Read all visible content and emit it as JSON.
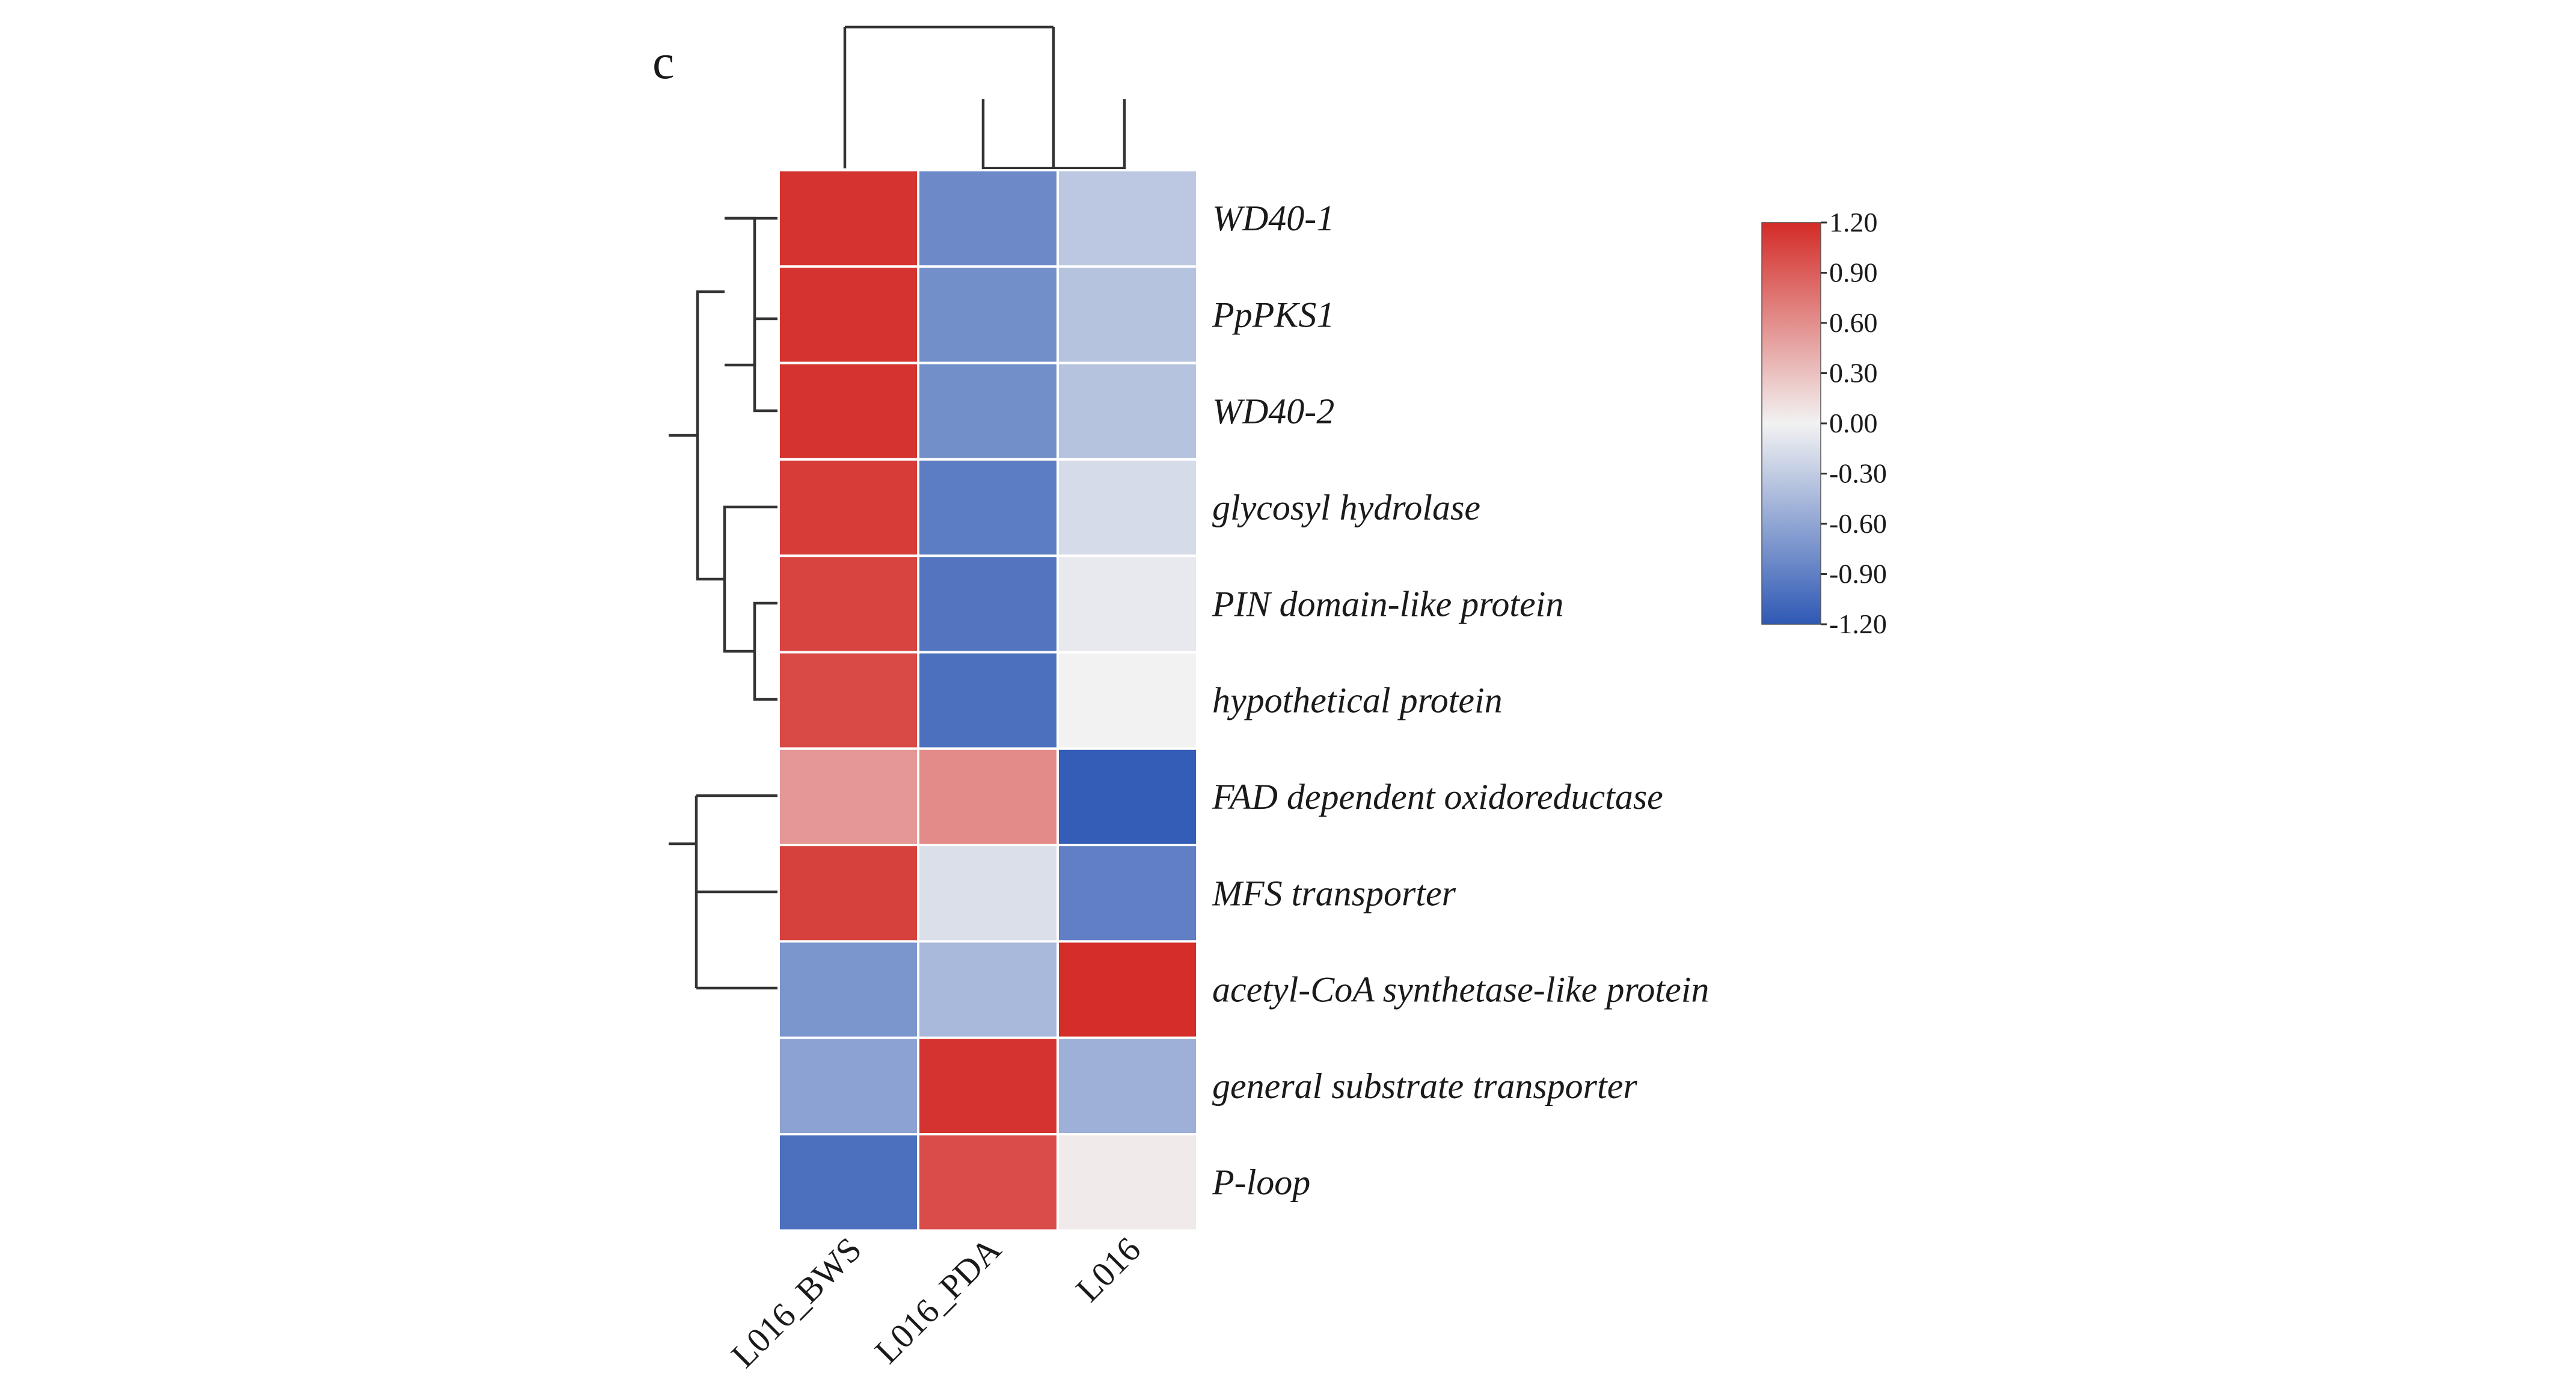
{
  "panel_label": "c",
  "chart_data": {
    "type": "heatmap",
    "title": "",
    "columns": [
      "L016_BWS",
      "L016_PDA",
      "L016"
    ],
    "rows": [
      "WD40-1",
      "PpPKS1",
      "WD40-2",
      "glycosyl hydrolase",
      "PIN domain-like protein",
      "hypothetical protein",
      "FAD dependent oxidoreductase",
      "MFS transporter",
      "acetyl-CoA synthetase-like protein",
      "general substrate transporter",
      "P-loop"
    ],
    "values": [
      [
        1.15,
        -0.82,
        -0.33
      ],
      [
        1.15,
        -0.78,
        -0.37
      ],
      [
        1.15,
        -0.78,
        -0.37
      ],
      [
        1.1,
        -0.92,
        -0.18
      ],
      [
        1.05,
        -0.98,
        -0.07
      ],
      [
        1.02,
        -1.02,
        0.0
      ],
      [
        0.55,
        0.62,
        -1.17
      ],
      [
        1.07,
        -0.15,
        -0.9
      ],
      [
        -0.73,
        -0.45,
        1.18
      ],
      [
        -0.63,
        1.15,
        -0.52
      ],
      [
        -1.02,
        1.0,
        0.05
      ]
    ],
    "colorbar": {
      "min": -1.2,
      "max": 1.2,
      "ticks": [
        "1.20",
        "0.90",
        "0.60",
        "0.30",
        "0.00",
        "-0.30",
        "-0.60",
        "-0.90",
        "-1.20"
      ],
      "colors": {
        "low": "#2f59b5",
        "mid": "#f2f2f2",
        "high": "#d42b27"
      }
    },
    "row_dendrogram": true,
    "column_dendrogram": true
  }
}
